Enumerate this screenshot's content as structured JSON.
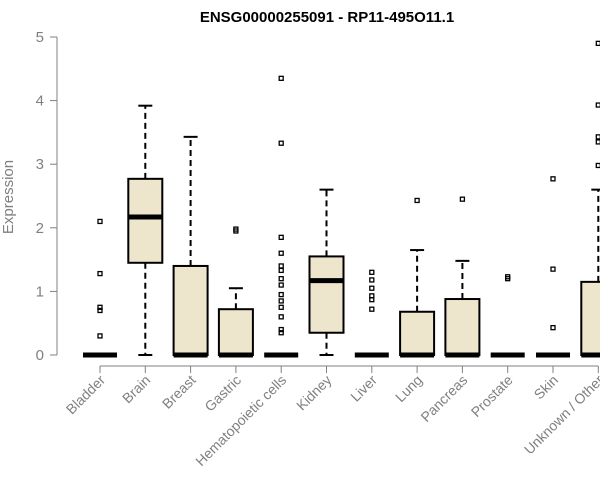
{
  "chart_data": {
    "type": "box",
    "title": "ENSG00000255091 - RP11-495O11.1",
    "xlabel": "",
    "ylabel": "Expression",
    "ylim": [
      0,
      5
    ],
    "yticks": [
      "0",
      "1",
      "2",
      "3",
      "4",
      "5"
    ],
    "grid": false,
    "box_color": "#ede6cc",
    "categories": [
      "Bladder",
      "Brain",
      "Breast",
      "Gastric",
      "Hematopoietic cells",
      "Kidney",
      "Liver",
      "Lung",
      "Pancreas",
      "Prostate",
      "Skin",
      "Unknown / Other"
    ],
    "boxes": [
      {
        "category": "Bladder",
        "lower_whisker": 0,
        "q1": 0,
        "median": 0,
        "q3": 0,
        "upper_whisker": 0,
        "outliers": [
          2.1,
          1.28,
          0.75,
          0.7,
          0.3
        ]
      },
      {
        "category": "Brain",
        "lower_whisker": 0,
        "q1": 1.45,
        "median": 2.17,
        "q3": 2.77,
        "upper_whisker": 3.92,
        "outliers": []
      },
      {
        "category": "Breast",
        "lower_whisker": 0,
        "q1": 0,
        "median": 0,
        "q3": 1.4,
        "upper_whisker": 3.43,
        "outliers": []
      },
      {
        "category": "Gastric",
        "lower_whisker": 0,
        "q1": 0,
        "median": 0,
        "q3": 0.72,
        "upper_whisker": 1.05,
        "outliers": [
          1.98,
          1.95
        ]
      },
      {
        "category": "Hematopoietic cells",
        "lower_whisker": 0,
        "q1": 0,
        "median": 0,
        "q3": 0,
        "upper_whisker": 0,
        "outliers": [
          4.35,
          3.33,
          1.85,
          1.6,
          1.4,
          1.33,
          1.2,
          1.1,
          0.95,
          0.85,
          0.75,
          0.6,
          0.4,
          0.35
        ]
      },
      {
        "category": "Kidney",
        "lower_whisker": 0,
        "q1": 0.35,
        "median": 1.17,
        "q3": 1.55,
        "upper_whisker": 2.6,
        "outliers": []
      },
      {
        "category": "Liver",
        "lower_whisker": 0,
        "q1": 0,
        "median": 0,
        "q3": 0,
        "upper_whisker": 0,
        "outliers": [
          1.3,
          1.18,
          1.05,
          0.93,
          0.87,
          0.72
        ]
      },
      {
        "category": "Lung",
        "lower_whisker": 0,
        "q1": 0,
        "median": 0,
        "q3": 0.68,
        "upper_whisker": 1.65,
        "outliers": [
          2.43
        ]
      },
      {
        "category": "Pancreas",
        "lower_whisker": 0,
        "q1": 0,
        "median": 0,
        "q3": 0.88,
        "upper_whisker": 1.48,
        "outliers": [
          2.45
        ]
      },
      {
        "category": "Prostate",
        "lower_whisker": 0,
        "q1": 0,
        "median": 0,
        "q3": 0,
        "upper_whisker": 0,
        "outliers": [
          1.23,
          1.2
        ]
      },
      {
        "category": "Skin",
        "lower_whisker": 0,
        "q1": 0,
        "median": 0,
        "q3": 0,
        "upper_whisker": 0,
        "outliers": [
          2.77,
          1.35,
          0.43
        ]
      },
      {
        "category": "Unknown / Other",
        "lower_whisker": 0,
        "q1": 0,
        "median": 0,
        "q3": 1.15,
        "upper_whisker": 2.6,
        "outliers": [
          4.9,
          3.93,
          3.43,
          3.35,
          2.98
        ]
      }
    ]
  }
}
